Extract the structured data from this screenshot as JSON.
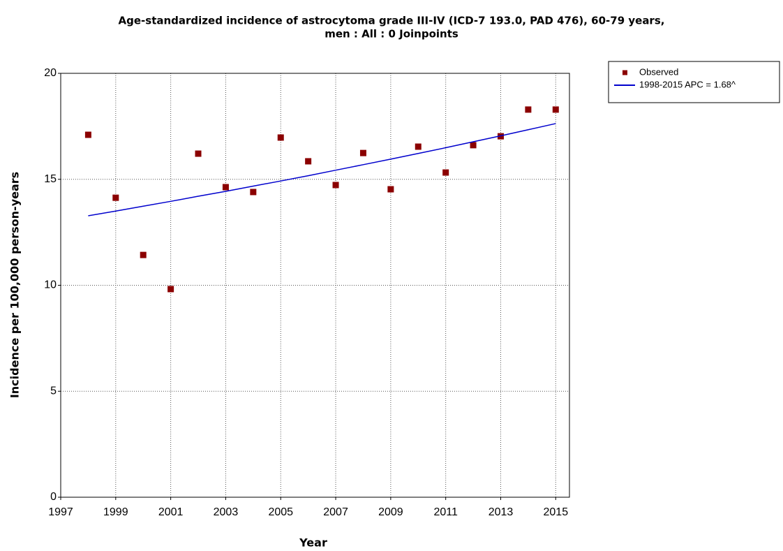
{
  "chart_data": {
    "type": "scatter",
    "title": [
      "Age-standardized incidence of astrocytoma grade III-IV (ICD-7 193.0, PAD 476), 60-79 years,",
      "men : All : 0 Joinpoints"
    ],
    "x_label": "Year",
    "y_label": "Incidence per 100,000 person-years",
    "x": [
      1998,
      1999,
      2000,
      2001,
      2002,
      2003,
      2004,
      2005,
      2006,
      2007,
      2008,
      2009,
      2010,
      2011,
      2012,
      2013,
      2014,
      2015
    ],
    "series": [
      {
        "name": "Observed",
        "color": "#8b0000",
        "mode": "markers",
        "values": [
          17.1,
          14.13,
          11.43,
          9.82,
          16.21,
          14.63,
          14.4,
          16.97,
          15.85,
          14.73,
          16.24,
          14.53,
          16.54,
          15.32,
          16.61,
          17.03,
          18.29,
          18.29
        ]
      },
      {
        "name": "1998-2015 APC  = 1.68^",
        "color": "#0000cd",
        "mode": "line",
        "values": [
          13.28,
          13.5,
          13.73,
          13.96,
          14.2,
          14.43,
          14.68,
          14.92,
          15.17,
          15.43,
          15.69,
          15.95,
          16.22,
          16.49,
          16.77,
          17.05,
          17.34,
          17.63
        ]
      }
    ],
    "xlim": [
      1997,
      2015.5
    ],
    "xticks": [
      1997,
      1999,
      2001,
      2003,
      2005,
      2007,
      2009,
      2011,
      2013,
      2015
    ],
    "ylim": [
      0,
      20
    ],
    "yticks": [
      0,
      5,
      10,
      15,
      20
    ],
    "grid": true,
    "legend": "outside-top-right"
  }
}
